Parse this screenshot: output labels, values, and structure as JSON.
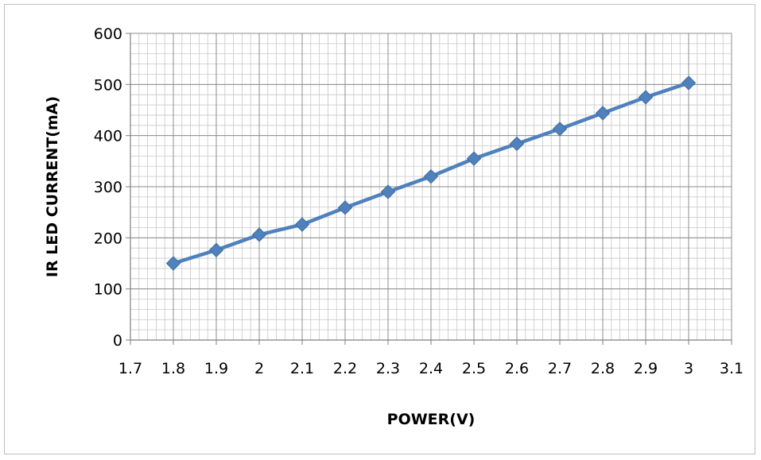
{
  "chart_data": {
    "type": "line",
    "title": "",
    "xlabel": "POWER(V)",
    "ylabel": "IR LED CURRENT(mA)",
    "xlim": [
      1.7,
      3.1
    ],
    "ylim": [
      0,
      600
    ],
    "x_ticks": [
      "1.7",
      "1.8",
      "1.9",
      "2",
      "2.1",
      "2.2",
      "2.3",
      "2.4",
      "2.5",
      "2.6",
      "2.7",
      "2.8",
      "2.9",
      "3",
      "3.1"
    ],
    "y_ticks": [
      "0",
      "100",
      "200",
      "300",
      "400",
      "500",
      "600"
    ],
    "grid": true,
    "legend": "none",
    "series": [
      {
        "color": "#4f81bd",
        "marker": "diamond",
        "points": [
          {
            "x": 1.8,
            "y": 150
          },
          {
            "x": 1.9,
            "y": 176
          },
          {
            "x": 2.0,
            "y": 206
          },
          {
            "x": 2.1,
            "y": 226
          },
          {
            "x": 2.2,
            "y": 259
          },
          {
            "x": 2.3,
            "y": 290
          },
          {
            "x": 2.4,
            "y": 320
          },
          {
            "x": 2.5,
            "y": 355
          },
          {
            "x": 2.6,
            "y": 384
          },
          {
            "x": 2.7,
            "y": 413
          },
          {
            "x": 2.8,
            "y": 444
          },
          {
            "x": 2.9,
            "y": 475
          },
          {
            "x": 3.0,
            "y": 503
          }
        ]
      }
    ]
  }
}
